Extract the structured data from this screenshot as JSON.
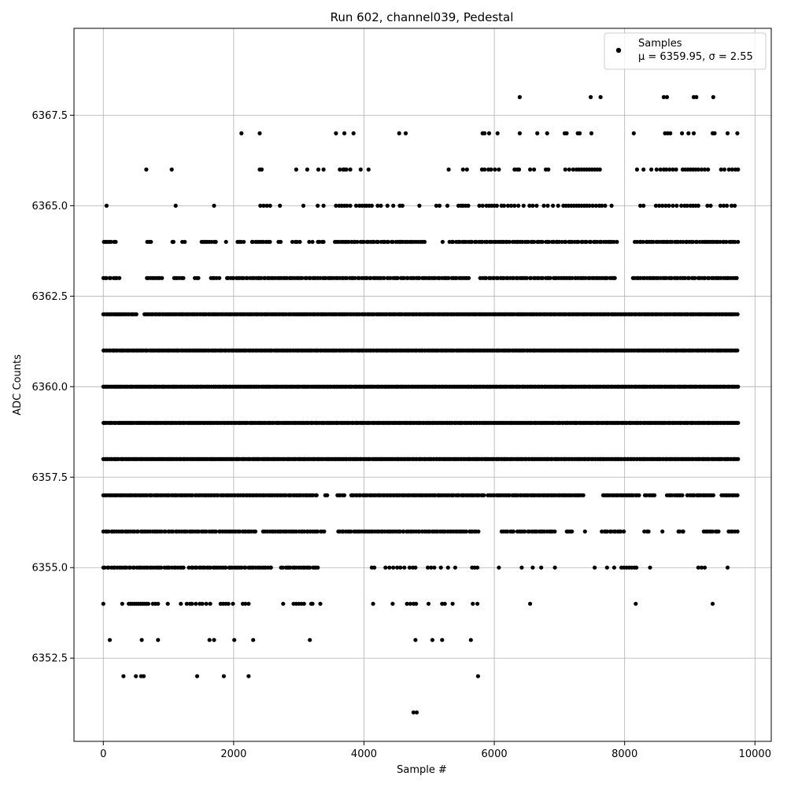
{
  "chart_data": {
    "type": "scatter",
    "title": "Run 602, channel039, Pedestal",
    "xlabel": "Sample #",
    "ylabel": "ADC Counts",
    "xlim": [
      -450,
      10250
    ],
    "ylim": [
      6350.2,
      6369.9
    ],
    "xticks": [
      0,
      2000,
      4000,
      6000,
      8000,
      10000
    ],
    "xtick_labels": [
      "0",
      "2000",
      "4000",
      "6000",
      "8000",
      "10000"
    ],
    "yticks": [
      6352.5,
      6355.0,
      6357.5,
      6360.0,
      6362.5,
      6365.0,
      6367.5
    ],
    "ytick_labels": [
      "6352.5",
      "6355.0",
      "6357.5",
      "6360.0",
      "6362.5",
      "6365.0",
      "6367.5"
    ],
    "grid": true,
    "legend_position": "top-right",
    "marker_color": "#000000",
    "series": [
      {
        "name": "Samples",
        "stats_label": "μ = 6359.95, σ = 2.55",
        "levels": [
          {
            "y": 6351,
            "x": [
              4760,
              4810
            ]
          },
          {
            "y": 6352,
            "x": [
              310,
              500,
              580,
              620,
              1440,
              1850,
              2230,
              5750
            ]
          },
          {
            "y": 6353,
            "x": [
              100,
              590,
              840,
              1630,
              1700,
              2010,
              2300,
              3170,
              4790,
              5050,
              5200,
              5640
            ]
          },
          {
            "y": 6354,
            "x": [
              0,
              290,
              390,
              420,
              450,
              480,
              510,
              540,
              570,
              600,
              630,
              660,
              690,
              760,
              800,
              840,
              990,
              1190,
              1280,
              1330,
              1360,
              1420,
              1480,
              1520,
              1580,
              1640,
              1800,
              1840,
              1880,
              1920,
              1990,
              2140,
              2180,
              2230,
              2760,
              2920,
              2960,
              3000,
              3040,
              3080,
              3190,
              3210,
              3330,
              4140,
              4440,
              4660,
              4710,
              4760,
              4800,
              4990,
              5200,
              5240,
              5360,
              5670,
              5740,
              6550,
              8170,
              9350
            ]
          },
          {
            "y": 6355,
            "start": 0,
            "end": 3320,
            "step": 30,
            "gaps": [
              [
                1230,
                1300
              ],
              [
                2600,
                2700
              ]
            ],
            "extra": [
              4120,
              4160,
              4330,
              4390,
              4450,
              4510,
              4560,
              4620,
              4700,
              4750,
              4790,
              4980,
              5030,
              5080,
              5180,
              5290,
              5400,
              5660,
              5700,
              5740,
              6070,
              6420,
              6590,
              6720,
              6930,
              7540,
              7730,
              7840,
              7950,
              7990,
              8030,
              8070,
              8110,
              8150,
              8180,
              8390,
              9130,
              9180,
              9230,
              9580
            ]
          },
          {
            "y": 6356,
            "start": 0,
            "end": 9740,
            "step": 30,
            "gaps": [
              [
                2350,
                2450
              ],
              [
                3400,
                3600
              ],
              [
                5800,
                6100
              ],
              [
                6300,
                6350
              ],
              [
                6950,
                7100
              ],
              [
                7200,
                7350
              ],
              [
                7400,
                7650
              ],
              [
                8000,
                8300
              ],
              [
                8380,
                8560
              ],
              [
                8600,
                8800
              ],
              [
                8920,
                9200
              ],
              [
                9450,
                9580
              ]
            ]
          },
          {
            "y": 6357,
            "start": 0,
            "end": 9740,
            "step": 26,
            "gaps": [
              [
                3300,
                3400
              ],
              [
                3460,
                3580
              ],
              [
                3700,
                3800
              ],
              [
                5850,
                5900
              ],
              [
                7370,
                7650
              ],
              [
                8250,
                8300
              ],
              [
                8460,
                8650
              ],
              [
                8900,
                8950
              ],
              [
                9380,
                9470
              ]
            ]
          },
          {
            "y": 6358,
            "start": 0,
            "end": 9740,
            "step": 20,
            "gaps": []
          },
          {
            "y": 6359,
            "start": 0,
            "end": 9740,
            "step": 20,
            "gaps": []
          },
          {
            "y": 6360,
            "start": 0,
            "end": 9740,
            "step": 20,
            "gaps": []
          },
          {
            "y": 6361,
            "start": 0,
            "end": 9740,
            "step": 22,
            "gaps": []
          },
          {
            "y": 6362,
            "start": 0,
            "end": 9740,
            "step": 22,
            "gaps": [
              [
                520,
                620
              ]
            ]
          },
          {
            "y": 6363,
            "start": 0,
            "end": 9740,
            "step": 30,
            "gaps": [
              [
                250,
                650
              ],
              [
                900,
                1050
              ],
              [
                1250,
                1400
              ],
              [
                1500,
                1650
              ],
              [
                1800,
                1880
              ],
              [
                5620,
                5750
              ],
              [
                7870,
                8120
              ]
            ]
          },
          {
            "y": 6364,
            "start": 0,
            "end": 9740,
            "step": 32,
            "gaps": [
              [
                230,
                640
              ],
              [
                740,
                1030
              ],
              [
                1080,
                1200
              ],
              [
                1260,
                1500
              ],
              [
                1730,
                1860
              ],
              [
                1920,
                2050
              ],
              [
                2160,
                2250
              ],
              [
                2560,
                2680
              ],
              [
                2740,
                2900
              ],
              [
                3040,
                3140
              ],
              [
                3210,
                3290
              ],
              [
                3420,
                3530
              ],
              [
                4940,
                5190
              ],
              [
                5250,
                5290
              ],
              [
                7890,
                8140
              ]
            ]
          },
          {
            "y": 6365,
            "x": [
              50,
              1110,
              1700,
              2410,
              2460,
              2510,
              2560,
              2710,
              3070,
              3290,
              3380,
              3570,
              3620,
              3660,
              3700,
              3740,
              3790,
              3880,
              3930,
              3970,
              4010,
              4040,
              4080,
              4120,
              4210,
              4260,
              4360,
              4450,
              4550,
              4590,
              4850,
              5110,
              5160,
              5280,
              5450,
              5490,
              5520,
              5560,
              5600,
              5770,
              5820,
              5880,
              5920,
              5960,
              6000,
              6040,
              6110,
              6150,
              6210,
              6260,
              6310,
              6370,
              6450,
              6540,
              6590,
              6650,
              6760,
              6820,
              6900,
              6980,
              7060,
              7100,
              7140,
              7180,
              7220,
              7260,
              7300,
              7340,
              7380,
              7420,
              7460,
              7510,
              7560,
              7610,
              7650,
              7700,
              7800,
              8240,
              8290,
              8480,
              8530,
              8580,
              8630,
              8680,
              8740,
              8800,
              8870,
              8920,
              8960,
              9010,
              9050,
              9090,
              9130,
              9270,
              9320,
              9470,
              9520,
              9570,
              9640,
              9690
            ]
          },
          {
            "y": 6366,
            "x": [
              660,
              1050,
              2400,
              2430,
              2960,
              3130,
              3300,
              3380,
              3630,
              3680,
              3700,
              3730,
              3790,
              3950,
              4070,
              5300,
              5520,
              5580,
              5810,
              5850,
              5910,
              5950,
              6010,
              6070,
              6310,
              6350,
              6380,
              6550,
              6610,
              6790,
              6830,
              7090,
              7150,
              7210,
              7260,
              7300,
              7340,
              7380,
              7420,
              7460,
              7500,
              7540,
              7580,
              7620,
              8190,
              8290,
              8410,
              8490,
              8550,
              8600,
              8640,
              8690,
              8740,
              8790,
              8890,
              8930,
              8970,
              9010,
              9050,
              9090,
              9130,
              9180,
              9230,
              9280,
              9480,
              9530,
              9600,
              9650,
              9700,
              9740
            ]
          },
          {
            "y": 6367,
            "x": [
              2120,
              2400,
              3570,
              3700,
              3840,
              4540,
              4640,
              5820,
              5850,
              5920,
              6050,
              6390,
              6660,
              6810,
              7080,
              7110,
              7280,
              7310,
              7490,
              8140,
              8620,
              8660,
              8700,
              8880,
              8980,
              9060,
              9350,
              9380,
              9580,
              9730
            ]
          },
          {
            "y": 6368,
            "x": [
              6390,
              7480,
              7630,
              8600,
              8650,
              9060,
              9100,
              9360
            ]
          }
        ]
      }
    ]
  }
}
